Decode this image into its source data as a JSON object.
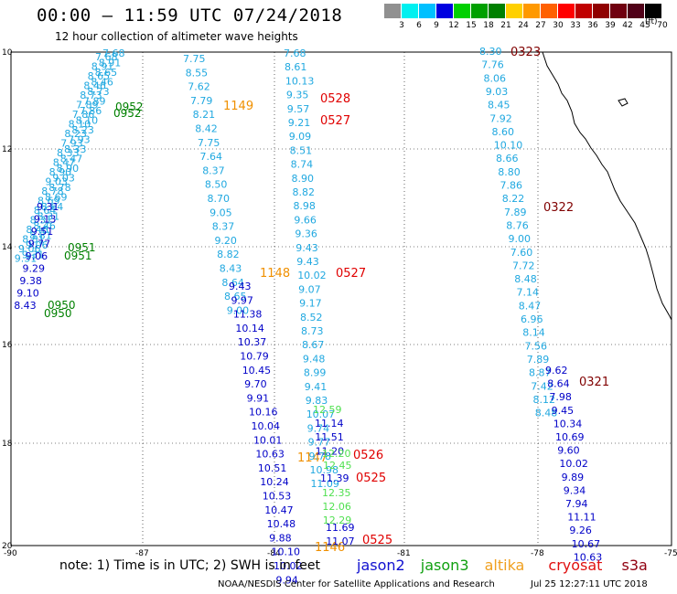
{
  "title": "00:00 – 11:59 UTC 07/24/2018",
  "subtitle": "12 hour collection of altimeter wave heights",
  "legend": {
    "labels": [
      "3",
      "6",
      "9",
      "12",
      "15",
      "18",
      "21",
      "24",
      "27",
      "30",
      "33",
      "36",
      "39",
      "42",
      "45",
      "70"
    ],
    "unit": "(ft)",
    "colors": [
      "#909090",
      "#00f0f0",
      "#00c0ff",
      "#0000e0",
      "#00d000",
      "#00a000",
      "#008000",
      "#ffd000",
      "#ff9900",
      "#ff6000",
      "#ff0000",
      "#c00000",
      "#900000",
      "#700010",
      "#500018",
      "#000000"
    ]
  },
  "axes": {
    "lat_labels": [
      "10",
      "12",
      "14",
      "16",
      "18",
      "20"
    ],
    "lon_labels": [
      "-90",
      "-87",
      "-84",
      "-81",
      "-78",
      "-75"
    ]
  },
  "tracks": {
    "jason2_west": [
      "9.31",
      "9.13",
      "9.51",
      "9.77",
      "9.06",
      "9.29",
      "9.38",
      "9.10",
      "8.43"
    ],
    "jason2_west_times": [
      "0951",
      "0950"
    ],
    "jason3_west_times": [
      "0952"
    ],
    "altika_a_top": [
      "7.75",
      "8.55",
      "7.62",
      "7.79",
      "8.21",
      "8.42",
      "7.75",
      "7.64",
      "8.37",
      "8.50",
      "8.70",
      "9.05",
      "8.37",
      "9.20",
      "8.82",
      "8.43",
      "8.64",
      "8.65",
      "9.00"
    ],
    "altika_a_bottom": [
      "9.43",
      "9.97",
      "11.38",
      "10.14",
      "10.37",
      "10.79",
      "10.45",
      "9.70",
      "9.91",
      "10.16",
      "10.04",
      "10.01",
      "10.63",
      "10.51",
      "10.24",
      "10.53",
      "10.47",
      "10.48",
      "9.88",
      "10.10",
      "10.02",
      "9.94"
    ],
    "altika_a_times": [
      "1149",
      "1148",
      "1147",
      "1146"
    ],
    "cryo_b_top": [
      "7.68",
      "8.61",
      "10.13",
      "9.35",
      "9.57",
      "9.21",
      "9.09",
      "8.51",
      "8.74",
      "8.90",
      "8.82",
      "8.98",
      "9.66",
      "9.36",
      "9.43",
      "9.43",
      "10.02",
      "9.07",
      "9.17",
      "8.52",
      "8.73",
      "8.67",
      "9.48",
      "8.99",
      "9.41",
      "9.83",
      "10.07",
      "9.74",
      "9.77",
      "9.78",
      "10.98",
      "11.09"
    ],
    "cryo_b_green": [
      "12.59"
    ],
    "cryo_b_mid": [
      "11.14",
      "11.51",
      "11.20"
    ],
    "cryo_b_green2": [
      "12.20",
      "12.45"
    ],
    "cryo_b_mid2": [
      "11.39"
    ],
    "cryo_b_green3": [
      "12.35",
      "12.06",
      "12.29"
    ],
    "cryo_b_bottom": [
      "11.69",
      "11.07"
    ],
    "cryo_b_times": [
      "0528",
      "0527",
      "0527",
      "0526",
      "0525",
      "0525"
    ],
    "s3a_c_top": [
      "8.30",
      "7.76",
      "8.06",
      "9.03",
      "8.45",
      "7.92",
      "8.60",
      "10.10",
      "8.66",
      "8.80",
      "7.86",
      "8.22",
      "7.89",
      "8.76",
      "9.00",
      "7.60",
      "7.72",
      "8.48",
      "7.14",
      "8.47",
      "6.96",
      "8.14",
      "7.56",
      "7.89",
      "8.87",
      "7.42",
      "8.12",
      "8.48"
    ],
    "s3a_c_bottom": [
      "9.62",
      "8.64",
      "7.98",
      "9.45",
      "10.34",
      "10.69",
      "9.60",
      "10.02",
      "9.89",
      "9.34",
      "7.94",
      "11.11",
      "9.26",
      "10.67",
      "10.63"
    ],
    "s3a_c_times": [
      "0323",
      "0322",
      "0321"
    ]
  },
  "footer": {
    "note": "note:  1) Time is in UTC;  2) SWH is in feet",
    "sats": [
      {
        "label": "jason2",
        "color": "#1010d0"
      },
      {
        "label": "jason3",
        "color": "#10a010"
      },
      {
        "label": "altika",
        "color": "#f0a020"
      },
      {
        "label": "cryosat",
        "color": "#e01010"
      },
      {
        "label": "s3a",
        "color": "#900010"
      }
    ],
    "credit": "NOAA/NESDIS Center for Satellite Applications and Research",
    "stamp": "Jul 25 12:27:11 UTC 2018"
  }
}
